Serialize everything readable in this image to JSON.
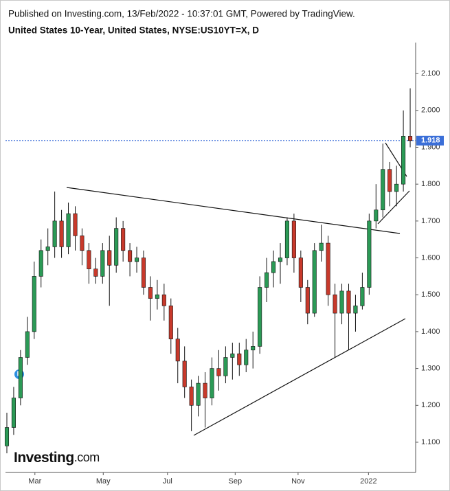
{
  "chart_data": {
    "type": "candlestick",
    "header": "Published on Investing.com, 13/Feb/2022 - 10:37:01 GMT, Powered by TradingView.",
    "title": "United States 10-Year, United States, NYSE:US10YT=X, D",
    "logo": "Investing",
    "logo_suffix": ".com",
    "badge": "P",
    "up_color": "#2b9a56",
    "down_color": "#c8392b",
    "wick_color": "#111111",
    "open": [
      1.09,
      1.14,
      1.22,
      1.33,
      1.4,
      1.55,
      1.62,
      1.63,
      1.7,
      1.63,
      1.72,
      1.66,
      1.62,
      1.57,
      1.55,
      1.62,
      1.58,
      1.68,
      1.62,
      1.59,
      1.6,
      1.52,
      1.49,
      1.5,
      1.47,
      1.38,
      1.32,
      1.25,
      1.2,
      1.26,
      1.22,
      1.3,
      1.28,
      1.33,
      1.34,
      1.31,
      1.35,
      1.36,
      1.52,
      1.56,
      1.59,
      1.6,
      1.7,
      1.6,
      1.52,
      1.45,
      1.62,
      1.64,
      1.5,
      1.45,
      1.51,
      1.45,
      1.47,
      1.52,
      1.7,
      1.73,
      1.84,
      1.78,
      1.8,
      1.93
    ],
    "high": [
      1.18,
      1.25,
      1.35,
      1.44,
      1.59,
      1.65,
      1.68,
      1.78,
      1.73,
      1.75,
      1.74,
      1.68,
      1.64,
      1.6,
      1.64,
      1.66,
      1.71,
      1.7,
      1.64,
      1.63,
      1.62,
      1.55,
      1.54,
      1.53,
      1.49,
      1.41,
      1.36,
      1.27,
      1.28,
      1.29,
      1.33,
      1.35,
      1.36,
      1.37,
      1.37,
      1.38,
      1.4,
      1.55,
      1.6,
      1.62,
      1.64,
      1.71,
      1.72,
      1.62,
      1.54,
      1.64,
      1.69,
      1.66,
      1.53,
      1.53,
      1.53,
      1.5,
      1.56,
      1.72,
      1.8,
      1.91,
      1.86,
      1.85,
      2.0,
      2.06
    ],
    "low": [
      1.07,
      1.12,
      1.2,
      1.31,
      1.38,
      1.52,
      1.58,
      1.6,
      1.6,
      1.61,
      1.62,
      1.58,
      1.53,
      1.53,
      1.53,
      1.47,
      1.56,
      1.59,
      1.55,
      1.56,
      1.5,
      1.43,
      1.46,
      1.43,
      1.34,
      1.26,
      1.22,
      1.13,
      1.17,
      1.14,
      1.2,
      1.24,
      1.26,
      1.27,
      1.28,
      1.29,
      1.3,
      1.34,
      1.48,
      1.52,
      1.53,
      1.58,
      1.56,
      1.48,
      1.42,
      1.44,
      1.59,
      1.47,
      1.33,
      1.42,
      1.35,
      1.4,
      1.46,
      1.5,
      1.68,
      1.71,
      1.74,
      1.74,
      1.78,
      1.9
    ],
    "close": [
      1.14,
      1.22,
      1.33,
      1.4,
      1.55,
      1.62,
      1.63,
      1.7,
      1.63,
      1.72,
      1.66,
      1.62,
      1.57,
      1.55,
      1.62,
      1.58,
      1.68,
      1.62,
      1.59,
      1.6,
      1.52,
      1.49,
      1.5,
      1.47,
      1.38,
      1.32,
      1.25,
      1.2,
      1.26,
      1.22,
      1.3,
      1.28,
      1.33,
      1.34,
      1.31,
      1.35,
      1.36,
      1.52,
      1.56,
      1.59,
      1.6,
      1.7,
      1.6,
      1.52,
      1.45,
      1.62,
      1.64,
      1.5,
      1.45,
      1.51,
      1.45,
      1.47,
      1.52,
      1.7,
      1.73,
      1.84,
      1.78,
      1.8,
      1.93,
      1.918
    ],
    "last_price": 1.918,
    "last_price_color": "#3b6fd8",
    "xlim": [
      -0.2,
      59.8
    ],
    "xticks": [
      {
        "value": 4.1,
        "label": "Mar"
      },
      {
        "value": 14.1,
        "label": "May"
      },
      {
        "value": 23.5,
        "label": "Jul"
      },
      {
        "value": 33.4,
        "label": "Sep"
      },
      {
        "value": 42.6,
        "label": "Nov"
      },
      {
        "value": 52.9,
        "label": "2022"
      }
    ],
    "ylim": [
      1.018,
      2.184
    ],
    "yticks": [
      {
        "value": 1.1,
        "label": "1.100"
      },
      {
        "value": 1.2,
        "label": "1.200"
      },
      {
        "value": 1.3,
        "label": "1.300"
      },
      {
        "value": 1.4,
        "label": "1.400"
      },
      {
        "value": 1.5,
        "label": "1.500"
      },
      {
        "value": 1.6,
        "label": "1.600"
      },
      {
        "value": 1.7,
        "label": "1.700"
      },
      {
        "value": 1.8,
        "label": "1.800"
      },
      {
        "value": 1.9,
        "label": "1.900"
      },
      {
        "value": 2.0,
        "label": "2.000"
      },
      {
        "value": 2.1,
        "label": "2.100"
      }
    ]
  }
}
